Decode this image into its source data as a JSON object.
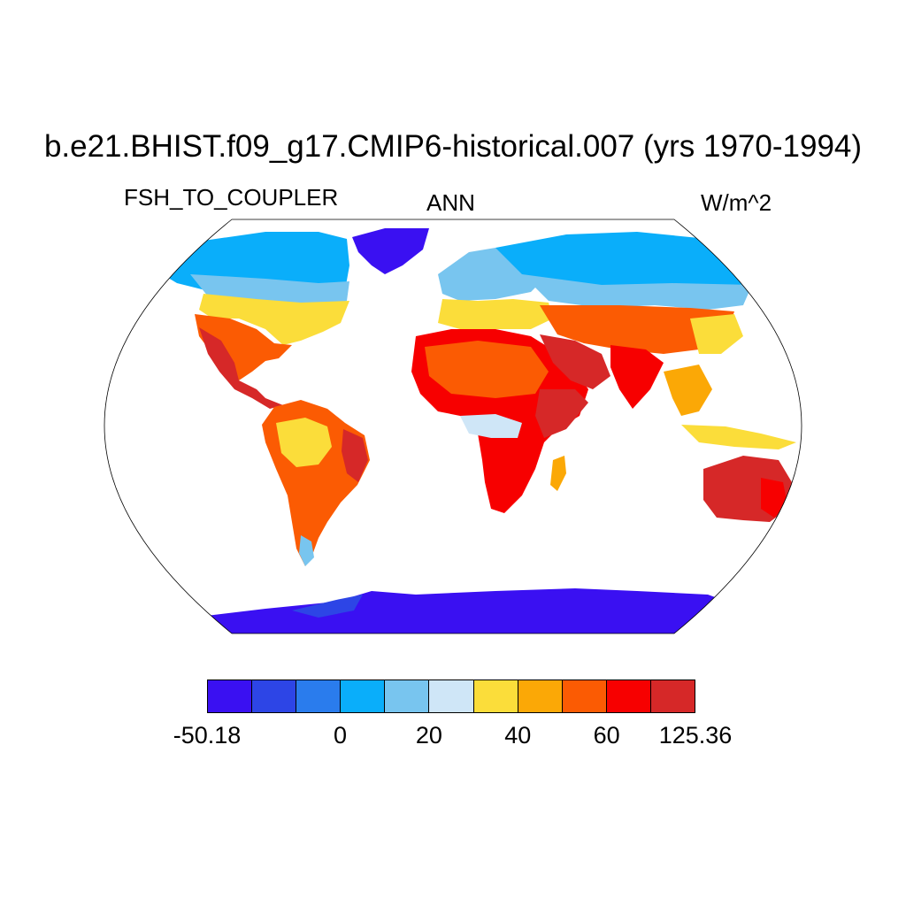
{
  "title": "b.e21.BHIST.f09_g17.CMIP6-historical.007 (yrs 1970-1994)",
  "left_label": "FSH_TO_COUPLER",
  "center_label": "ANN",
  "right_label": "W/m^2",
  "colorbar": {
    "colors": [
      "#3a10f2",
      "#2d45e6",
      "#2a7ced",
      "#0aaefa",
      "#78c5ef",
      "#cfe6f7",
      "#fbdd3a",
      "#fba806",
      "#fb5b03",
      "#f70000",
      "#d62828"
    ],
    "labels": [
      {
        "text": "-50.18",
        "boundary": 0
      },
      {
        "text": "0",
        "boundary": 3
      },
      {
        "text": "20",
        "boundary": 5
      },
      {
        "text": "40",
        "boundary": 7
      },
      {
        "text": "60",
        "boundary": 9
      },
      {
        "text": "125.36",
        "boundary": 11
      }
    ]
  }
}
